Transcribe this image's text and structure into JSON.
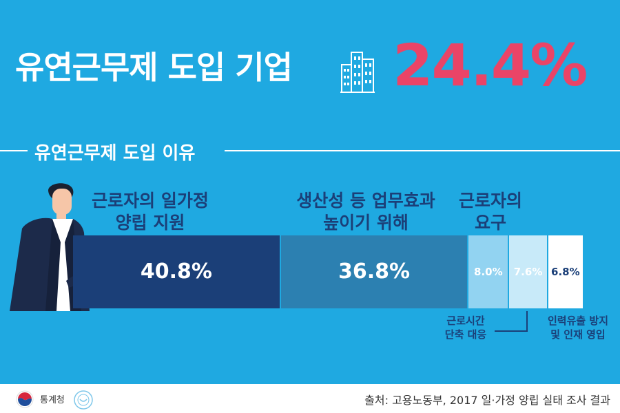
{
  "headline": {
    "title": "유연근무제 도입 기업",
    "icon": "building-icon",
    "percent": "24.4%"
  },
  "section": {
    "title": "유연근무제 도입 이유"
  },
  "colors": {
    "background": "#1fa9e1",
    "accent_red": "#ea4467",
    "seg1": "#1b3f78",
    "seg2": "#2c80b1",
    "seg3": "#92d3f1",
    "seg4": "#c8eaf9",
    "seg5": "#ffffff"
  },
  "chart_data": {
    "type": "bar",
    "stacked": true,
    "unit": "%",
    "categories": [
      "근로자의 일가정 양립 지원",
      "생산성 등 업무효과 높이기 위해",
      "근로자의 요구",
      "근로시간 단축 대응",
      "인력유출 방지 및 인재 영입"
    ],
    "values": [
      40.8,
      36.8,
      8.0,
      7.6,
      6.8
    ],
    "value_labels": [
      "40.8%",
      "36.8%",
      "8.0%",
      "7.6%",
      "6.8%"
    ],
    "label_lines": [
      [
        "근로자의 일가정",
        "양립 지원"
      ],
      [
        "생산성 등 업무효과",
        "높이기 위해"
      ],
      [
        "근로자의",
        "요구"
      ],
      [
        "근로시간",
        "단축 대응"
      ],
      [
        "인력유출 방지",
        "및 인재 영입"
      ]
    ]
  },
  "footer": {
    "agency": "통계청",
    "source": "출처: 고용노동부, 2017 일·가정 양립 실태 조사 결과"
  }
}
